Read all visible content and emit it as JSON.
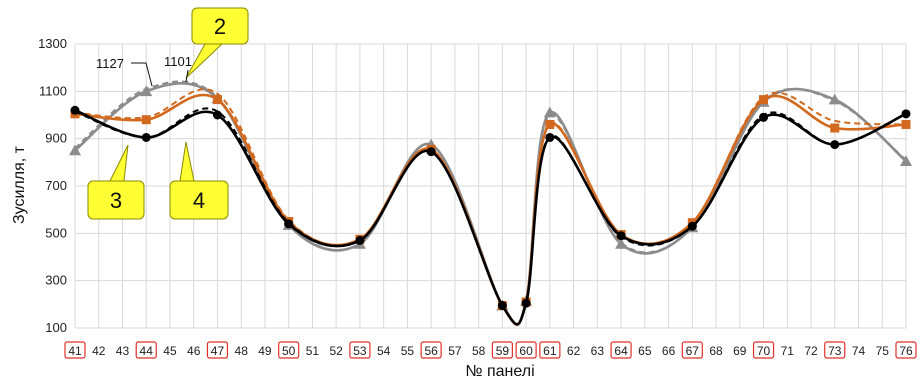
{
  "chart_data": {
    "type": "line",
    "xlabel": "№ панелі",
    "ylabel": "Зусилля, т",
    "ylim": [
      100,
      1300
    ],
    "yticks": [
      100,
      300,
      500,
      700,
      900,
      1100,
      1300
    ],
    "grid": true,
    "x": [
      41,
      42,
      43,
      44,
      45,
      46,
      47,
      48,
      49,
      50,
      51,
      52,
      53,
      54,
      55,
      56,
      57,
      58,
      59,
      60,
      61,
      62,
      63,
      64,
      65,
      66,
      67,
      68,
      69,
      70,
      71,
      72,
      73,
      74,
      75,
      76
    ],
    "boxed_x": [
      41,
      44,
      47,
      50,
      53,
      56,
      59,
      60,
      61,
      64,
      67,
      70,
      73,
      76
    ],
    "series": [
      {
        "color": "#000000",
        "dashed": false,
        "marker": "circle",
        "x": [
          41,
          44,
          47,
          50,
          53,
          56,
          59,
          60,
          61,
          64,
          67,
          70,
          73,
          76
        ],
        "values": [
          1020,
          905,
          1000,
          540,
          470,
          845,
          195,
          205,
          905,
          490,
          530,
          990,
          875,
          1005
        ]
      },
      {
        "color": "#000000",
        "dashed": true,
        "marker": "none",
        "x": [
          41,
          44,
          47,
          50,
          53,
          56,
          59,
          60,
          61,
          64,
          67,
          70,
          73,
          76
        ],
        "values": [
          1015,
          905,
          1015,
          545,
          470,
          845,
          195,
          205,
          910,
          485,
          530,
          1000,
          875,
          1005
        ]
      },
      {
        "color": "#d2691e",
        "dashed": false,
        "marker": "square",
        "x": [
          41,
          44,
          47,
          50,
          53,
          56,
          59,
          60,
          61,
          64,
          67,
          70,
          73,
          76
        ],
        "values": [
          1005,
          980,
          1065,
          550,
          475,
          855,
          195,
          210,
          960,
          495,
          545,
          1065,
          945,
          960
        ]
      },
      {
        "color": "#d2691e",
        "dashed": true,
        "marker": "none",
        "x": [
          41,
          44,
          47,
          50,
          53,
          56,
          59,
          60,
          61,
          64,
          67,
          70,
          73,
          76
        ],
        "values": [
          1010,
          990,
          1090,
          555,
          475,
          855,
          195,
          210,
          965,
          495,
          545,
          1075,
          975,
          960
        ]
      },
      {
        "color": "#8c8c8c",
        "dashed": false,
        "marker": "triangle",
        "x": [
          41,
          44,
          47,
          50,
          53,
          56,
          59,
          60,
          61,
          64,
          67,
          70,
          73,
          76
        ],
        "values": [
          850,
          1100,
          1070,
          535,
          455,
          875,
          195,
          215,
          1010,
          455,
          525,
          1055,
          1065,
          805
        ]
      },
      {
        "color": "#8c8c8c",
        "dashed": true,
        "marker": "none",
        "x": [
          41,
          44,
          47,
          50,
          53,
          56,
          59,
          60,
          61,
          64,
          67,
          70,
          73,
          76
        ],
        "values": [
          860,
          1110,
          1075,
          540,
          455,
          875,
          195,
          215,
          1000,
          460,
          525,
          1060,
          1060,
          810
        ]
      }
    ],
    "annotations": {
      "callouts": [
        {
          "label": "2",
          "color": "#ffff33"
        },
        {
          "label": "3",
          "color": "#ffff33"
        },
        {
          "label": "4",
          "color": "#ffff33"
        }
      ],
      "leader_labels": [
        "1127",
        "1101"
      ]
    }
  }
}
